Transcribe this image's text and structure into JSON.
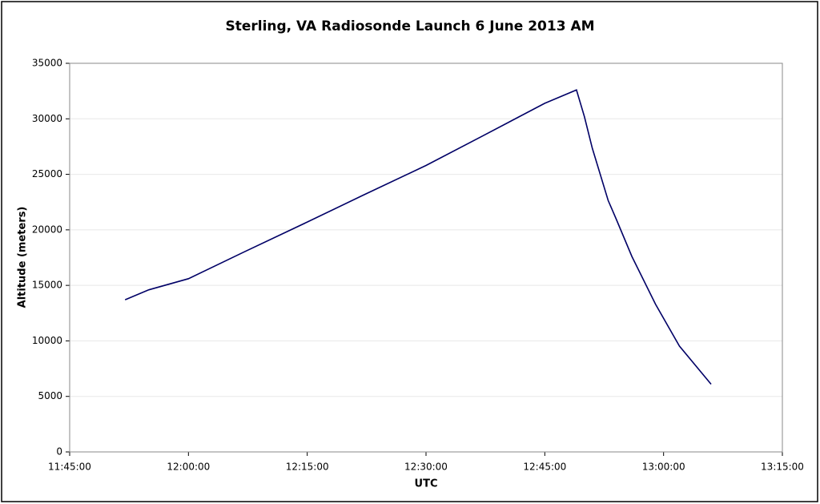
{
  "chart_data": {
    "type": "line",
    "title": "Sterling, VA Radiosonde Launch 6 June 2013 AM",
    "x_label": "UTC",
    "y_label": "Altitude (meters)",
    "x": [
      "11:52:00",
      "11:55:00",
      "12:00:00",
      "12:07:00",
      "12:15:00",
      "12:22:00",
      "12:30:00",
      "12:37:00",
      "12:45:00",
      "12:49:00",
      "12:50:00",
      "12:51:00",
      "12:53:00",
      "12:54:00",
      "12:56:00",
      "12:59:00",
      "13:02:00",
      "13:06:00"
    ],
    "series": [
      {
        "name": "Altitude",
        "color": "#000066",
        "values": [
          13700,
          14600,
          15600,
          18000,
          20700,
          23100,
          25800,
          28400,
          31400,
          32600,
          30200,
          27350,
          22650,
          21000,
          17600,
          13280,
          9530,
          6100
        ]
      }
    ],
    "xlim": [
      "11:45:00",
      "13:15:00"
    ],
    "xticks": [
      "11:45:00",
      "12:00:00",
      "12:15:00",
      "12:30:00",
      "12:45:00",
      "13:00:00",
      "13:15:00"
    ],
    "ylim": [
      0,
      35000
    ],
    "yticks": [
      0,
      5000,
      10000,
      15000,
      20000,
      25000,
      30000,
      35000
    ],
    "grid": true
  }
}
